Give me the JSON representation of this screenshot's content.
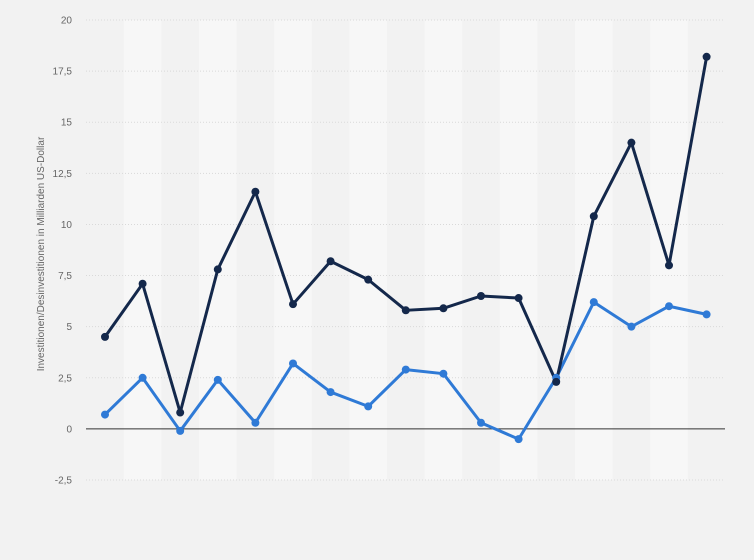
{
  "chart_data": {
    "type": "line",
    "title": "",
    "xlabel": "",
    "ylabel": "Investitionen/Desinvestitionen in Milliarden US-Dollar",
    "ylim": [
      -2.5,
      20
    ],
    "yticks": [
      20,
      17.5,
      15,
      12.5,
      10,
      7.5,
      5,
      2.5,
      0,
      -2.5
    ],
    "ytick_labels": [
      "20",
      "17,5",
      "15",
      "12,5",
      "10",
      "7,5",
      "5",
      "2,5",
      "0",
      "-2,5"
    ],
    "categories": [
      "",
      "",
      "",
      "",
      "",
      "",
      "",
      "",
      "",
      "",
      "",
      "",
      "",
      "",
      "",
      "",
      ""
    ],
    "grid": true,
    "alternating_column_bands": true,
    "series": [
      {
        "color": "#14284b",
        "values": [
          4.5,
          7.1,
          0.8,
          7.8,
          11.6,
          6.1,
          8.2,
          7.3,
          5.8,
          5.9,
          6.5,
          6.4,
          2.3,
          10.4,
          14.0,
          8.0,
          18.2
        ]
      },
      {
        "color": "#2f7ad6",
        "values": [
          0.7,
          2.5,
          -0.1,
          2.4,
          0.3,
          3.2,
          1.8,
          1.1,
          2.9,
          2.7,
          0.3,
          -0.5,
          2.5,
          6.2,
          5.0,
          6.0,
          5.6
        ]
      }
    ]
  },
  "colors": {
    "background": "#f2f2f2",
    "band": "#f7f7f7",
    "gridline": "#d9d9d9",
    "zero_line": "#333333"
  }
}
